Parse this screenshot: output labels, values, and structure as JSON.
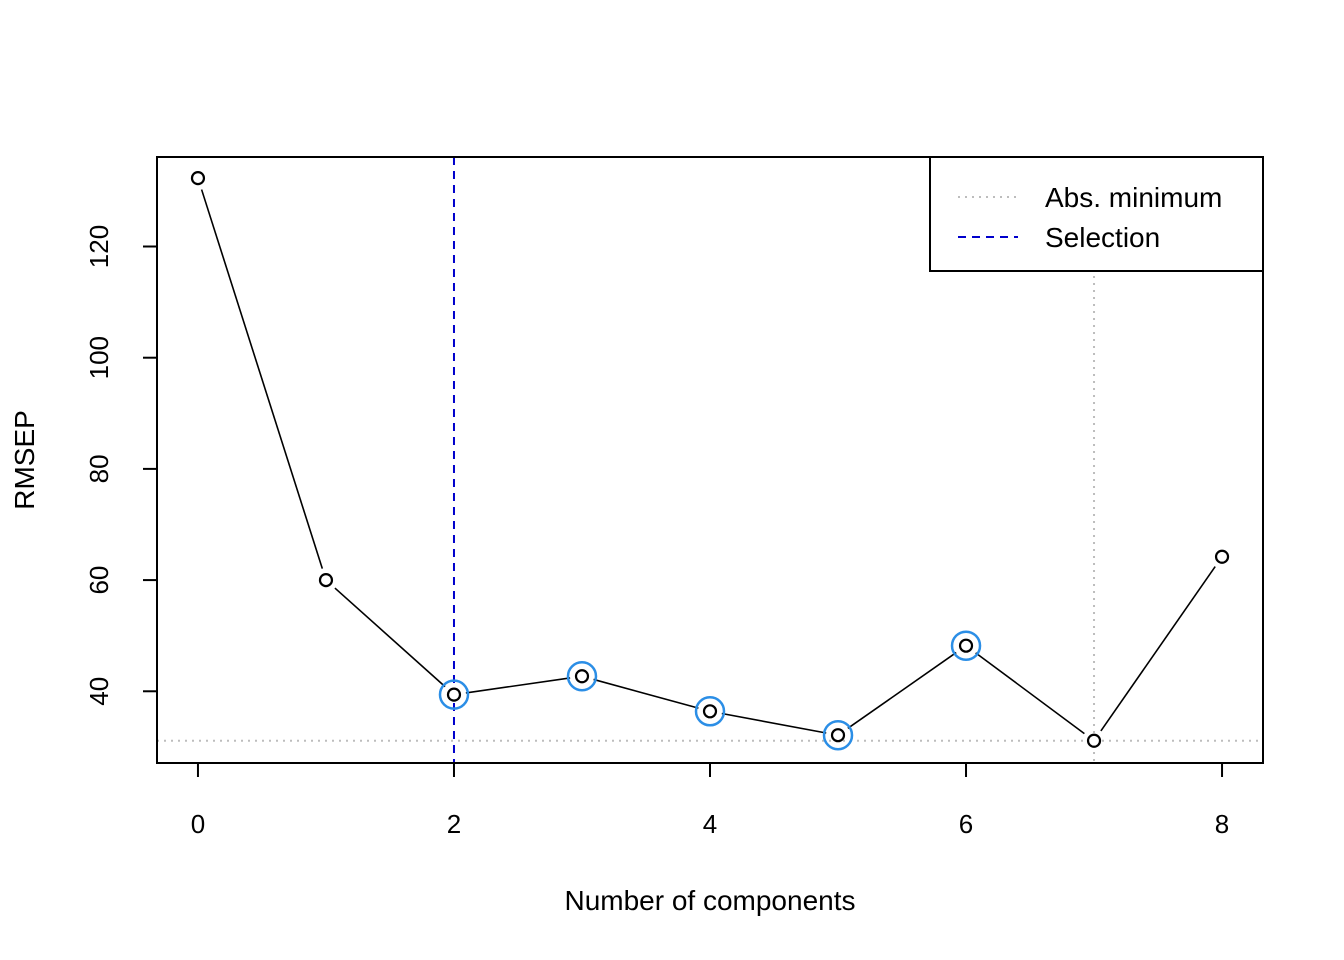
{
  "chart_data": {
    "type": "line",
    "title": "",
    "xlabel": "Number of components",
    "ylabel": "RMSEP",
    "xlim": [
      -0.32,
      8.32
    ],
    "ylim": [
      27.1,
      136.1
    ],
    "x_ticks": [
      "0",
      "2",
      "4",
      "6",
      "8"
    ],
    "y_ticks": [
      "40",
      "60",
      "80",
      "100",
      "120"
    ],
    "series": [
      {
        "x": [
          0,
          1,
          2,
          3,
          4,
          5,
          6,
          7,
          8
        ],
        "values": [
          132.3,
          60.0,
          39.4,
          42.7,
          36.4,
          32.1,
          48.2,
          31.1,
          64.2
        ],
        "color": "#000000"
      }
    ],
    "highlighted_components": [
      2,
      3,
      4,
      5,
      6
    ],
    "highlight_color": "#2b8ee6",
    "reference_lines": {
      "abs_minimum": {
        "x": 7,
        "y": 31.1,
        "color": "#bdbdbd",
        "style": "dotted"
      },
      "selection": {
        "x": 2,
        "color": "#0000cc",
        "style": "dashed"
      }
    },
    "legend": {
      "position": "top-right",
      "entries": [
        {
          "label": "Abs. minimum",
          "color": "#bdbdbd",
          "style": "dotted"
        },
        {
          "label": "Selection",
          "color": "#0000cc",
          "style": "dashed"
        }
      ]
    },
    "grid": false
  }
}
